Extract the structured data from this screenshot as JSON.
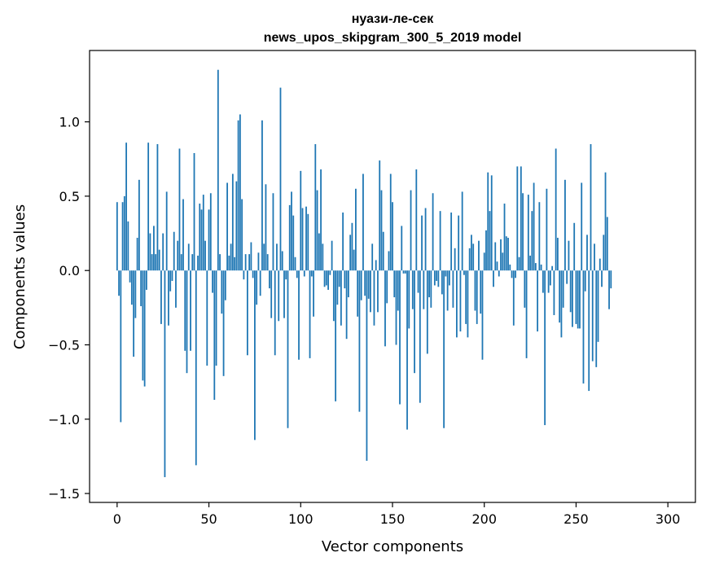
{
  "chart_data": {
    "type": "bar",
    "title_line1": "нуази-ле-сек",
    "title_line2": "news_upos_skipgram_300_5_2019 model",
    "xlabel": "Vector components",
    "ylabel": "Components values",
    "xlim": [
      -15,
      315
    ],
    "ylim": [
      -1.56,
      1.48
    ],
    "x_ticks": [
      0,
      50,
      100,
      150,
      200,
      250,
      300
    ],
    "x_tick_labels": [
      "0",
      "50",
      "100",
      "150",
      "200",
      "250",
      "300"
    ],
    "y_ticks": [
      -1.5,
      -1.0,
      -0.5,
      0.0,
      0.5,
      1.0
    ],
    "y_tick_labels": [
      "−1.5",
      "−1.0",
      "−0.5",
      "0.0",
      "0.5",
      "1.0"
    ],
    "grid": false,
    "bar_color": "#1f77b4",
    "x_start": 0,
    "values": [
      0.46,
      -0.17,
      -1.02,
      0.46,
      0.5,
      0.86,
      0.33,
      -0.08,
      -0.23,
      -0.58,
      -0.32,
      0.22,
      0.61,
      -0.24,
      -0.74,
      -0.78,
      -0.13,
      0.86,
      0.25,
      0.11,
      0.3,
      0.11,
      0.85,
      0.14,
      -0.36,
      0.25,
      -1.39,
      0.53,
      -0.37,
      -0.14,
      -0.07,
      0.26,
      -0.25,
      0.2,
      0.82,
      0.11,
      0.48,
      -0.54,
      -0.69,
      0.18,
      -0.54,
      0.11,
      0.79,
      -1.31,
      0.1,
      0.45,
      0.41,
      0.51,
      0.2,
      -0.64,
      0.41,
      0.52,
      -0.15,
      -0.87,
      -0.64,
      1.35,
      0.11,
      -0.29,
      -0.71,
      -0.2,
      0.59,
      0.1,
      0.18,
      0.65,
      0.09,
      0.6,
      1.01,
      1.05,
      0.48,
      -0.06,
      0.11,
      -0.57,
      0.11,
      0.19,
      -0.05,
      -1.14,
      -0.23,
      0.12,
      -0.17,
      1.01,
      0.18,
      0.58,
      0.11,
      -0.12,
      -0.32,
      0.52,
      -0.57,
      0.18,
      -0.34,
      1.23,
      0.13,
      -0.32,
      -0.06,
      -1.06,
      0.44,
      0.53,
      0.37,
      0.09,
      -0.05,
      -0.6,
      0.67,
      0.42,
      -0.04,
      0.43,
      0.38,
      -0.59,
      -0.04,
      -0.31,
      0.85,
      0.54,
      0.25,
      0.68,
      0.18,
      -0.11,
      -0.1,
      -0.13,
      -0.03,
      0.2,
      -0.34,
      -0.88,
      -0.23,
      -0.11,
      -0.37,
      0.39,
      -0.12,
      -0.46,
      -0.18,
      0.24,
      0.32,
      0.14,
      0.55,
      -0.31,
      -0.95,
      -0.2,
      0.65,
      -0.17,
      -1.28,
      -0.19,
      -0.28,
      0.18,
      -0.37,
      0.07,
      -0.28,
      0.74,
      0.54,
      0.26,
      -0.51,
      -0.22,
      0.13,
      0.65,
      0.46,
      -0.18,
      -0.5,
      -0.27,
      -0.9,
      0.3,
      -0.02,
      -0.02,
      -1.07,
      -0.39,
      0.54,
      -0.26,
      -0.69,
      0.68,
      -0.15,
      -0.89,
      0.37,
      -0.26,
      0.42,
      -0.56,
      -0.18,
      -0.25,
      0.52,
      -0.1,
      -0.07,
      -0.11,
      0.4,
      -0.16,
      -1.06,
      -0.04,
      -0.27,
      -0.1,
      0.39,
      -0.25,
      0.15,
      -0.45,
      0.37,
      -0.41,
      0.53,
      -0.03,
      -0.36,
      -0.45,
      0.15,
      0.24,
      0.18,
      -0.27,
      -0.36,
      0.2,
      -0.29,
      -0.6,
      0.12,
      0.27,
      0.66,
      0.4,
      0.64,
      -0.11,
      0.19,
      0.06,
      -0.04,
      0.21,
      0.12,
      0.45,
      0.23,
      0.22,
      0.04,
      -0.05,
      -0.37,
      -0.05,
      0.7,
      0.09,
      0.7,
      0.52,
      -0.25,
      -0.59,
      0.51,
      0.1,
      0.4,
      0.59,
      0.05,
      -0.41,
      0.46,
      0.04,
      -0.15,
      -1.04,
      0.55,
      -0.15,
      -0.1,
      0.03,
      -0.3,
      0.82,
      0.22,
      -0.35,
      -0.45,
      -0.25,
      0.61,
      -0.09,
      0.2,
      -0.28,
      -0.38,
      0.32,
      -0.36,
      -0.39,
      -0.39,
      0.59,
      -0.76,
      -0.14,
      0.24,
      -0.81,
      0.85,
      -0.61,
      0.18,
      -0.65,
      -0.48,
      0.08,
      -0.11,
      0.24,
      0.66,
      0.36,
      -0.26,
      -0.12
    ]
  }
}
